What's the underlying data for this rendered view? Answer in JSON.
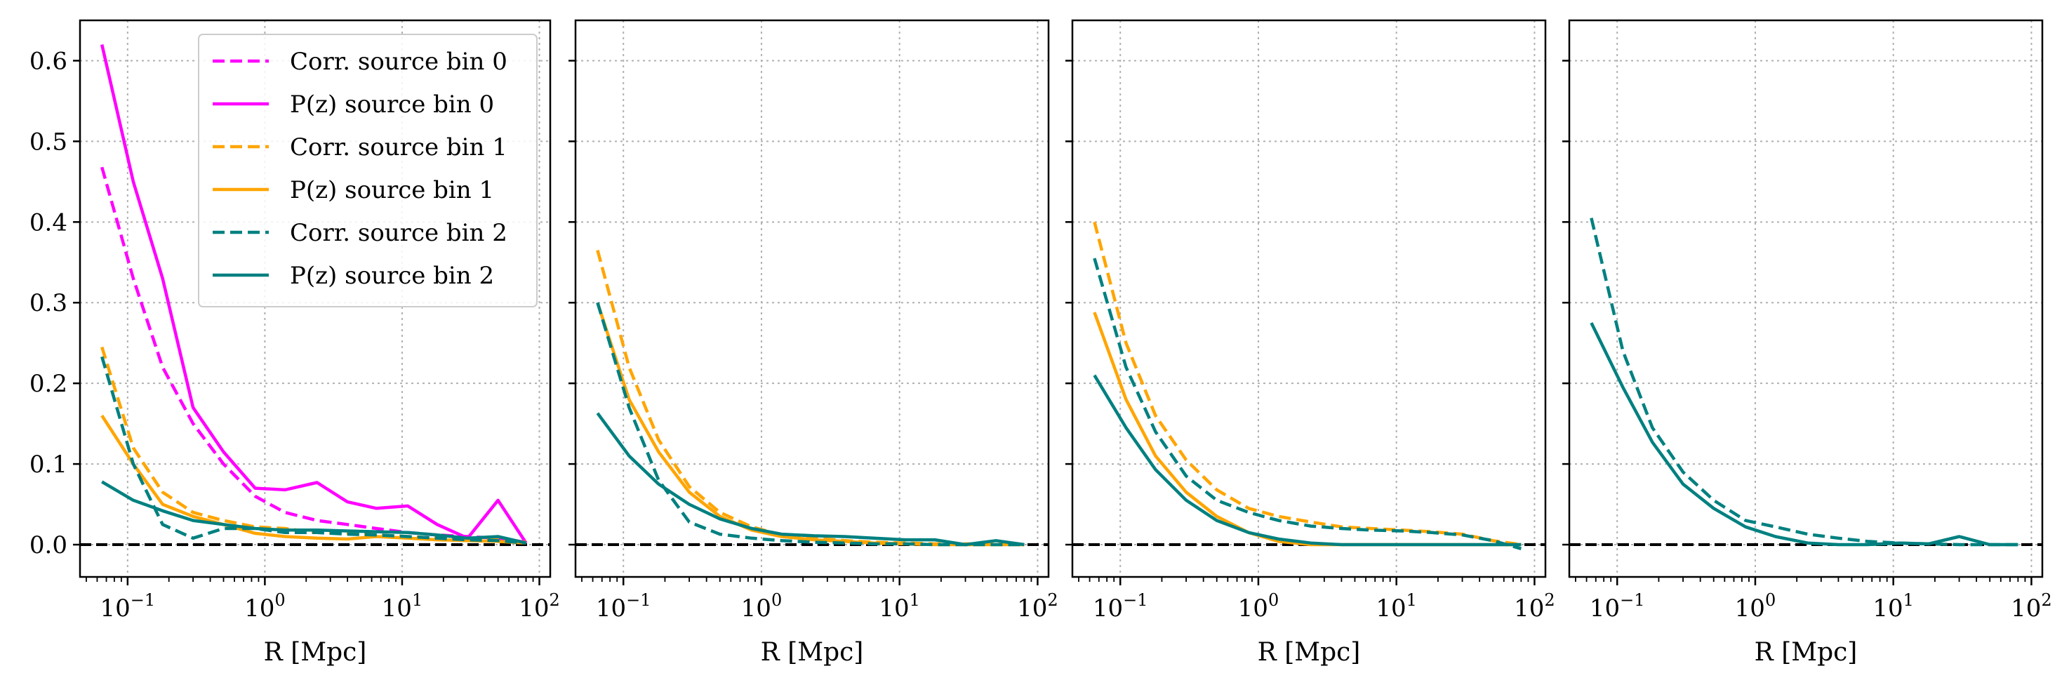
{
  "chart_data": [
    {
      "type": "line",
      "xlabel": "R [Mpc]",
      "ylabel": "",
      "xscale": "log",
      "xlim": [
        0.045,
        120
      ],
      "ylim": [
        -0.04,
        0.65
      ],
      "grid": true,
      "legend_position": "top-right",
      "xticks": [
        "10^-1",
        "10^0",
        "10^1",
        "10^2"
      ],
      "yticks": [
        "0.0",
        "0.1",
        "0.2",
        "0.3",
        "0.4",
        "0.5",
        "0.6"
      ],
      "zero_line": true,
      "series": [
        {
          "name": "Corr. source bin 0",
          "color": "#ff00ff",
          "style": "dashed",
          "x": [
            0.065,
            0.11,
            0.18,
            0.3,
            0.5,
            0.85,
            1.4,
            2.4,
            4,
            6.5,
            11,
            18,
            30,
            50,
            80
          ],
          "y": [
            0.468,
            0.33,
            0.22,
            0.15,
            0.1,
            0.06,
            0.04,
            0.03,
            0.025,
            0.02,
            0.015,
            0.012,
            0.01,
            0.008,
            0.003
          ]
        },
        {
          "name": "P(z) source bin 0",
          "color": "#ff00ff",
          "style": "solid",
          "x": [
            0.065,
            0.11,
            0.18,
            0.3,
            0.5,
            0.85,
            1.4,
            2.4,
            4,
            6.5,
            11,
            18,
            30,
            50,
            80
          ],
          "y": [
            0.62,
            0.45,
            0.33,
            0.17,
            0.115,
            0.07,
            0.068,
            0.077,
            0.053,
            0.045,
            0.048,
            0.025,
            0.008,
            0.055,
            0.002
          ]
        },
        {
          "name": "Corr. source bin 1",
          "color": "#ffa500",
          "style": "dashed",
          "x": [
            0.065,
            0.11,
            0.18,
            0.3,
            0.5,
            0.85,
            1.4,
            2.4,
            4,
            6.5,
            11,
            18,
            30,
            50,
            80
          ],
          "y": [
            0.245,
            0.12,
            0.065,
            0.04,
            0.03,
            0.022,
            0.02,
            0.015,
            0.014,
            0.012,
            0.01,
            0.008,
            0.007,
            0.006,
            0.003
          ]
        },
        {
          "name": "P(z) source bin 1",
          "color": "#ffa500",
          "style": "solid",
          "x": [
            0.065,
            0.11,
            0.18,
            0.3,
            0.5,
            0.85,
            1.4,
            2.4,
            4,
            6.5,
            11,
            18,
            30,
            50,
            80
          ],
          "y": [
            0.16,
            0.1,
            0.05,
            0.035,
            0.025,
            0.014,
            0.01,
            0.008,
            0.007,
            0.01,
            0.008,
            0.006,
            0.005,
            0.004,
            0.002
          ]
        },
        {
          "name": "Corr. source bin 2",
          "color": "#008080",
          "style": "dashed",
          "x": [
            0.065,
            0.11,
            0.18,
            0.3,
            0.5,
            0.85,
            1.4,
            2.4,
            4,
            6.5,
            11,
            18,
            30,
            50,
            80
          ],
          "y": [
            0.233,
            0.1,
            0.025,
            0.008,
            0.02,
            0.02,
            0.015,
            0.015,
            0.013,
            0.012,
            0.01,
            0.008,
            0.006,
            0.005,
            0.002
          ]
        },
        {
          "name": "P(z) source bin 2",
          "color": "#008080",
          "style": "solid",
          "x": [
            0.065,
            0.11,
            0.18,
            0.3,
            0.5,
            0.85,
            1.4,
            2.4,
            4,
            6.5,
            11,
            18,
            30,
            50,
            80
          ],
          "y": [
            0.078,
            0.055,
            0.042,
            0.03,
            0.025,
            0.02,
            0.018,
            0.018,
            0.017,
            0.016,
            0.015,
            0.012,
            0.008,
            0.01,
            0.002
          ]
        }
      ]
    },
    {
      "type": "line",
      "xlabel": "R [Mpc]",
      "ylabel": "",
      "xscale": "log",
      "xlim": [
        0.045,
        120
      ],
      "ylim": [
        -0.04,
        0.65
      ],
      "grid": true,
      "xticks": [
        "10^-1",
        "10^0",
        "10^1",
        "10^2"
      ],
      "zero_line": true,
      "series": [
        {
          "color": "#ffa500",
          "style": "dashed",
          "x": [
            0.065,
            0.11,
            0.18,
            0.3,
            0.5,
            0.85,
            1.4,
            2.4,
            4,
            6.5,
            11,
            18,
            30,
            50,
            80
          ],
          "y": [
            0.365,
            0.22,
            0.13,
            0.072,
            0.04,
            0.022,
            0.012,
            0.008,
            0.005,
            0.003,
            0.002,
            0.001,
            0.001,
            0.001,
            0.0
          ]
        },
        {
          "color": "#ffa500",
          "style": "solid",
          "x": [
            0.065,
            0.11,
            0.18,
            0.3,
            0.5,
            0.85,
            1.4,
            2.4,
            4,
            6.5,
            11,
            18,
            30,
            50,
            80
          ],
          "y": [
            0.3,
            0.18,
            0.115,
            0.065,
            0.035,
            0.018,
            0.01,
            0.006,
            0.004,
            0.002,
            0.001,
            0.0,
            0.0,
            0.0,
            0.0
          ]
        },
        {
          "color": "#008080",
          "style": "dashed",
          "x": [
            0.065,
            0.11,
            0.18,
            0.3,
            0.5,
            0.85,
            1.4,
            2.4,
            4,
            6.5,
            11,
            18,
            30,
            50,
            80
          ],
          "y": [
            0.3,
            0.17,
            0.08,
            0.028,
            0.013,
            0.008,
            0.005,
            0.003,
            0.002,
            0.001,
            0.001,
            0.0,
            0.0,
            0.0,
            0.0
          ]
        },
        {
          "color": "#008080",
          "style": "solid",
          "x": [
            0.065,
            0.11,
            0.18,
            0.3,
            0.5,
            0.85,
            1.4,
            2.4,
            4,
            6.5,
            11,
            18,
            30,
            50,
            80
          ],
          "y": [
            0.163,
            0.11,
            0.075,
            0.05,
            0.032,
            0.02,
            0.013,
            0.011,
            0.01,
            0.008,
            0.006,
            0.006,
            0.0,
            0.005,
            0.0
          ]
        }
      ]
    },
    {
      "type": "line",
      "xlabel": "R [Mpc]",
      "ylabel": "",
      "xscale": "log",
      "xlim": [
        0.045,
        120
      ],
      "ylim": [
        -0.04,
        0.65
      ],
      "grid": true,
      "xticks": [
        "10^-1",
        "10^0",
        "10^1",
        "10^2"
      ],
      "zero_line": true,
      "series": [
        {
          "color": "#ffa500",
          "style": "dashed",
          "x": [
            0.065,
            0.11,
            0.18,
            0.3,
            0.5,
            0.85,
            1.4,
            2.4,
            4,
            6.5,
            11,
            18,
            30,
            50,
            80
          ],
          "y": [
            0.4,
            0.25,
            0.16,
            0.105,
            0.068,
            0.045,
            0.035,
            0.028,
            0.022,
            0.02,
            0.018,
            0.016,
            0.013,
            0.005,
            0.0
          ]
        },
        {
          "color": "#ffa500",
          "style": "solid",
          "x": [
            0.065,
            0.11,
            0.18,
            0.3,
            0.5,
            0.85,
            1.4,
            2.4,
            4,
            6.5,
            11,
            18,
            30,
            50,
            80
          ],
          "y": [
            0.288,
            0.18,
            0.11,
            0.065,
            0.035,
            0.015,
            0.004,
            0.0,
            0.0,
            0.0,
            0.0,
            0.0,
            0.0,
            0.0,
            0.0
          ]
        },
        {
          "color": "#008080",
          "style": "dashed",
          "x": [
            0.065,
            0.11,
            0.18,
            0.3,
            0.5,
            0.85,
            1.4,
            2.4,
            4,
            6.5,
            11,
            18,
            30,
            50,
            80
          ],
          "y": [
            0.355,
            0.22,
            0.14,
            0.085,
            0.055,
            0.04,
            0.03,
            0.023,
            0.02,
            0.018,
            0.017,
            0.015,
            0.012,
            0.005,
            -0.005
          ]
        },
        {
          "color": "#008080",
          "style": "solid",
          "x": [
            0.065,
            0.11,
            0.18,
            0.3,
            0.5,
            0.85,
            1.4,
            2.4,
            4,
            6.5,
            11,
            18,
            30,
            50,
            80
          ],
          "y": [
            0.21,
            0.145,
            0.093,
            0.055,
            0.03,
            0.015,
            0.007,
            0.002,
            0.0,
            0.0,
            0.0,
            0.0,
            0.0,
            0.0,
            0.0
          ]
        }
      ]
    },
    {
      "type": "line",
      "xlabel": "R [Mpc]",
      "ylabel": "",
      "xscale": "log",
      "xlim": [
        0.045,
        120
      ],
      "ylim": [
        -0.04,
        0.65
      ],
      "grid": true,
      "xticks": [
        "10^-1",
        "10^0",
        "10^1",
        "10^2"
      ],
      "zero_line": true,
      "series": [
        {
          "color": "#008080",
          "style": "dashed",
          "x": [
            0.065,
            0.11,
            0.18,
            0.3,
            0.5,
            0.85,
            1.4,
            2.4,
            4,
            6.5,
            11,
            18,
            30,
            50,
            80
          ],
          "y": [
            0.405,
            0.24,
            0.145,
            0.09,
            0.055,
            0.03,
            0.022,
            0.013,
            0.008,
            0.004,
            0.002,
            0.001,
            0.0,
            0.0,
            0.0
          ]
        },
        {
          "color": "#008080",
          "style": "solid",
          "x": [
            0.065,
            0.11,
            0.18,
            0.3,
            0.5,
            0.85,
            1.4,
            2.4,
            4,
            6.5,
            11,
            18,
            30,
            50,
            80
          ],
          "y": [
            0.275,
            0.195,
            0.127,
            0.075,
            0.045,
            0.022,
            0.01,
            0.002,
            0.0,
            0.0,
            0.002,
            0.001,
            0.01,
            0.0,
            0.0
          ]
        }
      ]
    }
  ]
}
